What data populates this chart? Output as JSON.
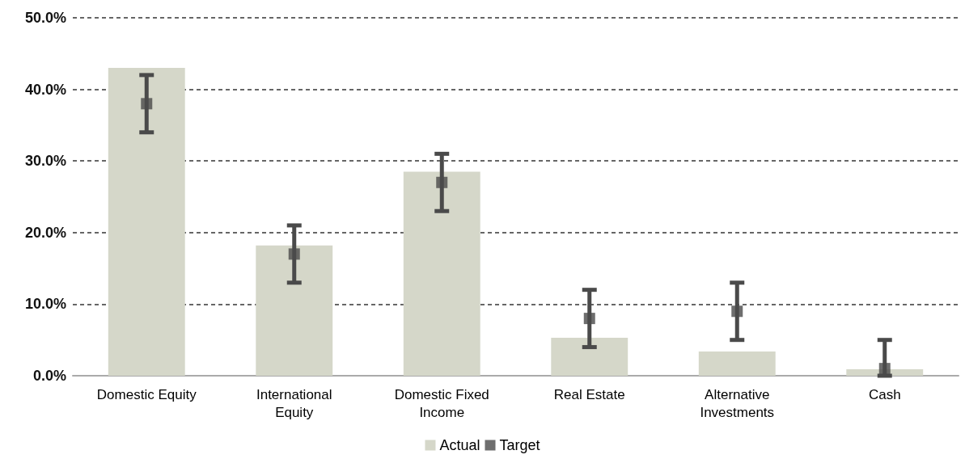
{
  "chart_data": {
    "type": "bar",
    "categories": [
      "Domestic Equity",
      "International Equity",
      "Domestic Fixed Income",
      "Real Estate",
      "Alternative Investments",
      "Cash"
    ],
    "series": [
      {
        "name": "Actual",
        "color": "#d5d7c9",
        "values": [
          43,
          18.2,
          28.5,
          5.3,
          3.4,
          0.9
        ]
      },
      {
        "name": "Target",
        "type": "scatter",
        "color": "#4a4a4a",
        "values": [
          38,
          17,
          27,
          8,
          9,
          1
        ],
        "errors": [
          4,
          4,
          4,
          4,
          4,
          [
            0,
            5
          ]
        ]
      }
    ],
    "ylim": [
      0,
      50
    ],
    "yticks": [
      {
        "value": 0,
        "label": "0.0%"
      },
      {
        "value": 10,
        "label": "10.0%"
      },
      {
        "value": 20,
        "label": "20.0%"
      },
      {
        "value": 30,
        "label": "30.0%"
      },
      {
        "value": 40,
        "label": "40.0%"
      },
      {
        "value": 50,
        "label": "50.0%"
      }
    ],
    "grid": "y",
    "legend": "bottom",
    "marker": "square"
  }
}
